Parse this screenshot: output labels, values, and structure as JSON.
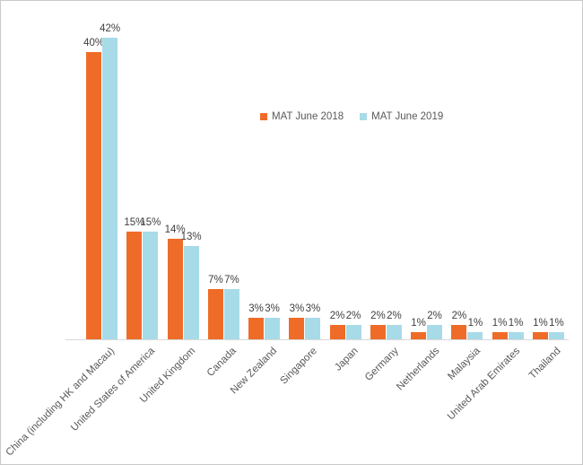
{
  "chart_data": {
    "type": "bar",
    "title": "",
    "xlabel": "",
    "ylabel": "",
    "grid": false,
    "data_labels": true,
    "value_suffix": "%",
    "ylim": [
      0,
      45
    ],
    "legend_position": "top-center",
    "categories": [
      "China (including HK and Macau)",
      "United States of America",
      "United Kingdom",
      "Canada",
      "New Zealand",
      "Singapore",
      "Japan",
      "Germany",
      "Netherlands",
      "Malaysia",
      "United Arab Emirates",
      "Thailand"
    ],
    "series": [
      {
        "name": "MAT June 2018",
        "color": "#EF6C28",
        "values": [
          40,
          15,
          14,
          7,
          3,
          3,
          2,
          2,
          1,
          2,
          1,
          1
        ]
      },
      {
        "name": "MAT June 2019",
        "color": "#A8DBE8",
        "values": [
          42,
          15,
          13,
          7,
          3,
          3,
          2,
          2,
          2,
          1,
          1,
          1
        ]
      }
    ]
  },
  "legend": {
    "items": [
      {
        "label": "MAT June 2018",
        "color": "#EF6C28"
      },
      {
        "label": "MAT June 2019",
        "color": "#A8DBE8"
      }
    ]
  },
  "colors": {
    "axis_line": "#D9D9D9",
    "data_label": "#404040",
    "category_label": "#595959",
    "border": "#C9C9C9",
    "background": "#FFFFFF"
  }
}
